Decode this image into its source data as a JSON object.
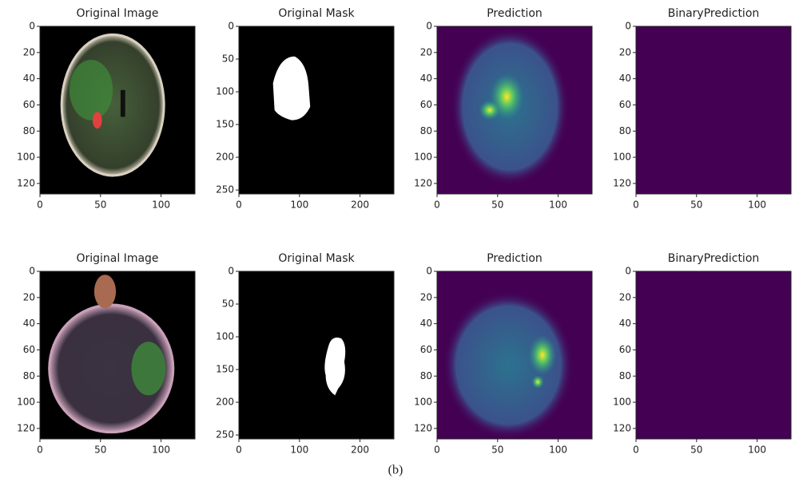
{
  "panels": [
    {
      "title": "Original Image",
      "xlim": [
        0,
        128
      ],
      "ylim": [
        128,
        0
      ],
      "xticks": [
        0,
        50,
        100
      ],
      "yticks": [
        0,
        20,
        40,
        60,
        80,
        100,
        120
      ]
    },
    {
      "title": "Original Mask",
      "xlim": [
        0,
        256
      ],
      "ylim": [
        256,
        0
      ],
      "xticks": [
        0,
        100,
        200
      ],
      "yticks": [
        0,
        50,
        100,
        150,
        200,
        250
      ]
    },
    {
      "title": "Prediction",
      "xlim": [
        0,
        128
      ],
      "ylim": [
        128,
        0
      ],
      "xticks": [
        0,
        50,
        100
      ],
      "yticks": [
        0,
        20,
        40,
        60,
        80,
        100,
        120
      ]
    },
    {
      "title": "BinaryPrediction",
      "xlim": [
        0,
        128
      ],
      "ylim": [
        128,
        0
      ],
      "xticks": [
        0,
        50,
        100
      ],
      "yticks": [
        0,
        20,
        40,
        60,
        80,
        100,
        120
      ]
    },
    {
      "title": "Original Image",
      "xlim": [
        0,
        128
      ],
      "ylim": [
        128,
        0
      ],
      "xticks": [
        0,
        50,
        100
      ],
      "yticks": [
        0,
        20,
        40,
        60,
        80,
        100,
        120
      ]
    },
    {
      "title": "Original Mask",
      "xlim": [
        0,
        256
      ],
      "ylim": [
        256,
        0
      ],
      "xticks": [
        0,
        100,
        200
      ],
      "yticks": [
        0,
        50,
        100,
        150,
        200,
        250
      ]
    },
    {
      "title": "Prediction",
      "xlim": [
        0,
        128
      ],
      "ylim": [
        128,
        0
      ],
      "xticks": [
        0,
        50,
        100
      ],
      "yticks": [
        0,
        20,
        40,
        60,
        80,
        100,
        120
      ]
    },
    {
      "title": "BinaryPrediction",
      "xlim": [
        0,
        128
      ],
      "ylim": [
        128,
        0
      ],
      "xticks": [
        0,
        50,
        100
      ],
      "yticks": [
        0,
        20,
        40,
        60,
        80,
        100,
        120
      ]
    }
  ],
  "caption": "(b)"
}
